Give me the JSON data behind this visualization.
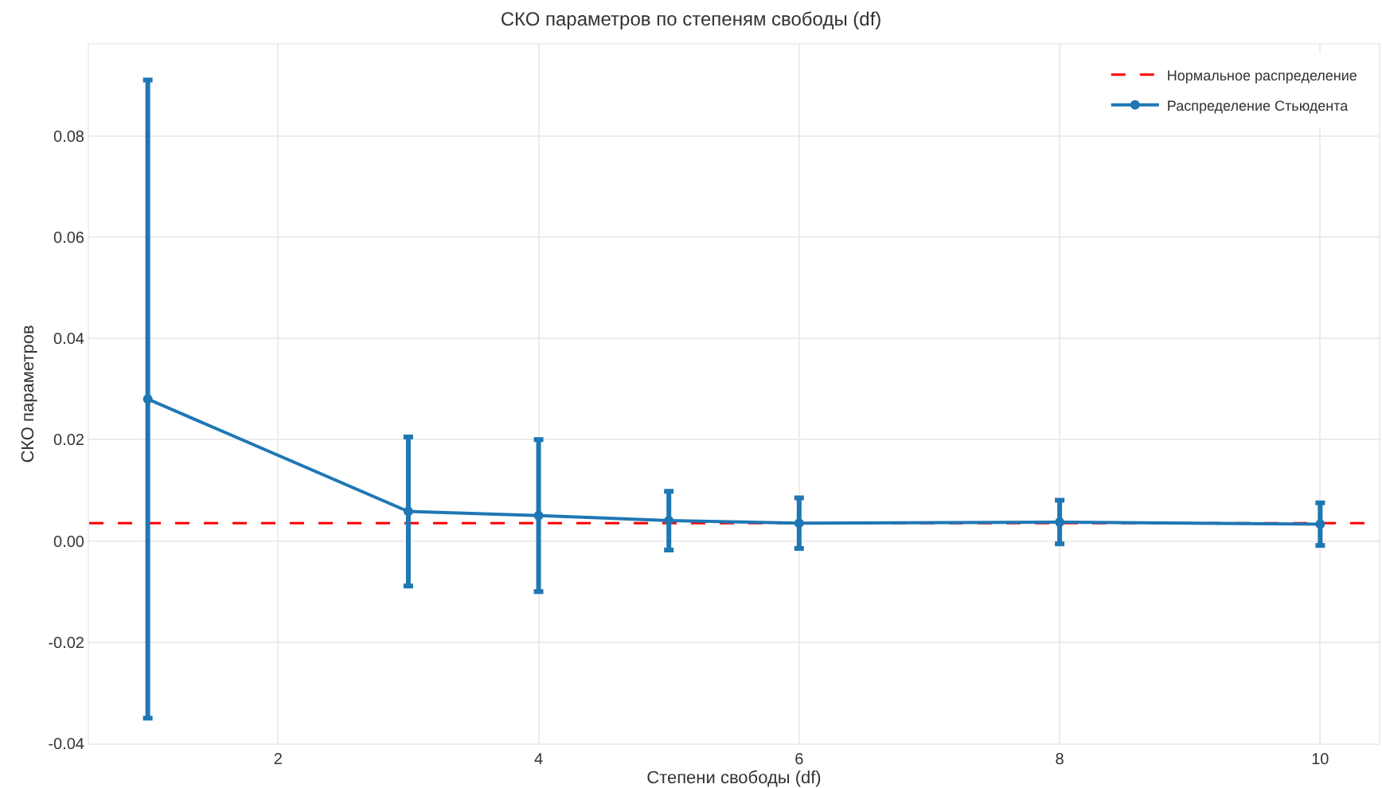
{
  "chart_data": {
    "type": "line",
    "title": "СКО параметров по степеням свободы (df)",
    "xlabel": "Степени свободы (df)",
    "ylabel": "СКО параметров",
    "x": [
      1,
      3,
      4,
      5,
      6,
      8,
      10
    ],
    "series": [
      {
        "name": "Распределение Стьюдента",
        "color": "#1f77b4",
        "values": [
          0.028,
          0.0058,
          0.005,
          0.004,
          0.0035,
          0.0037,
          0.0033
        ],
        "errors": [
          0.063,
          0.0147,
          0.015,
          0.0058,
          0.005,
          0.0043,
          0.0042
        ]
      }
    ],
    "ref_lines": [
      {
        "axis": "y",
        "value": 0.0035,
        "label": "Нормальное распределение",
        "color": "#ff0000",
        "line_style": "dashed"
      }
    ],
    "xlim": [
      0.55,
      10.45
    ],
    "xticks": [
      2,
      4,
      6,
      8,
      10
    ],
    "ylim": [
      -0.04,
      0.098
    ],
    "yticks": [
      {
        "value": -0.04,
        "label": "-0.04"
      },
      {
        "value": -0.02,
        "label": "-0.02"
      },
      {
        "value": 0,
        "label": "0.00"
      },
      {
        "value": 0.02,
        "label": "0.02"
      },
      {
        "value": 0.04,
        "label": "0.04"
      },
      {
        "value": 0.06,
        "label": "0.06"
      },
      {
        "value": 0.08,
        "label": "0.08"
      }
    ],
    "grid": true,
    "legend": "top right",
    "marker": "circle",
    "line_style": "solid"
  }
}
